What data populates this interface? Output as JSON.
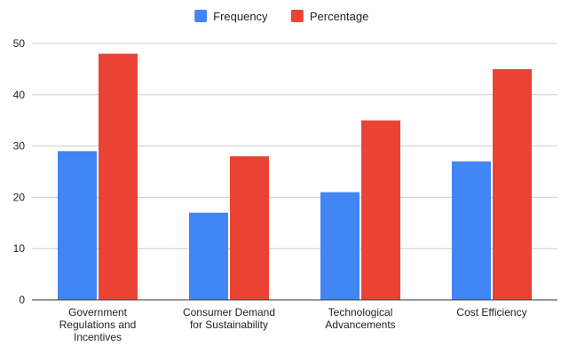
{
  "chart_data": {
    "type": "bar",
    "categories": [
      [
        "Government",
        "Regulations and",
        "Incentives"
      ],
      [
        "Consumer Demand",
        "for Sustainability"
      ],
      [
        "Technological",
        "Advancements"
      ],
      [
        "Cost Efficiency"
      ]
    ],
    "series": [
      {
        "name": "Frequency",
        "color": "#4285f4",
        "values": [
          29,
          17,
          21,
          27
        ]
      },
      {
        "name": "Percentage",
        "color": "#ea4335",
        "values": [
          48,
          28,
          35,
          45
        ]
      }
    ],
    "yticks": [
      "0",
      "10",
      "20",
      "30",
      "40",
      "50"
    ],
    "ylim": [
      0,
      50
    ],
    "grid": true,
    "legend_position": "top-center"
  }
}
